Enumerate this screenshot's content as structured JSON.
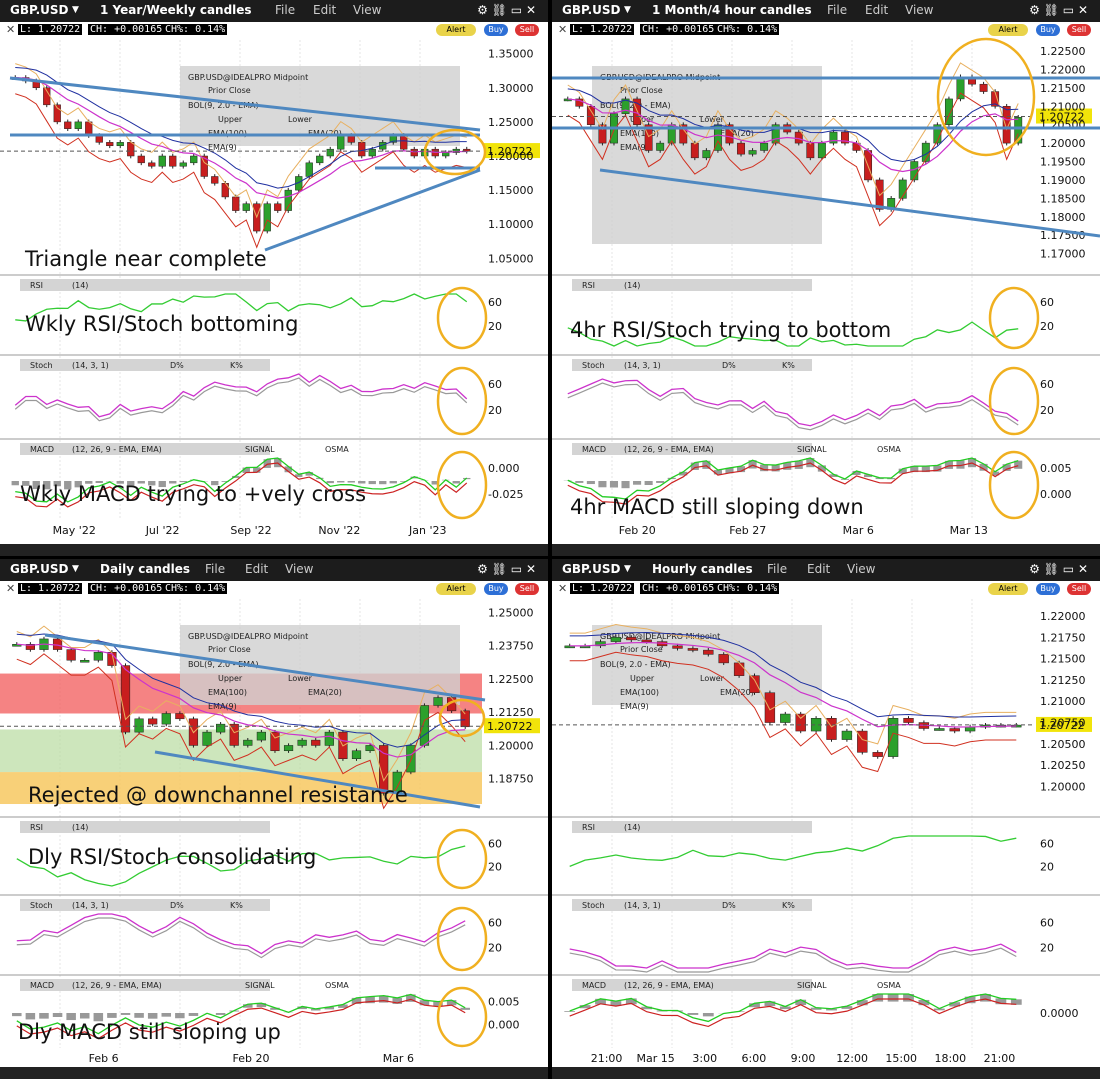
{
  "colors": {
    "accent_yellow": "#f1e40a",
    "trend_blue": "#4f88c0",
    "circle": "#f0b020",
    "bull": "#2ca02c",
    "bear": "#c81e1e",
    "rsi": "#33cc33",
    "stoch_k": "#cc33cc",
    "stoch_d": "#999999",
    "macd": "#22cc22",
    "signal": "#cc2222"
  },
  "common": {
    "symbol": "GBP.USD",
    "menu_file": "File",
    "menu_edit": "Edit",
    "menu_view": "View",
    "alert": "Alert",
    "buy": "Buy",
    "sell": "Sell",
    "quote_l": "L: 1.20722",
    "quote_ch": "CH: +0.00165",
    "quote_chp": "CH%: 0.14%",
    "last_price": "1.20722",
    "legend_title": "GBP.USD@IDEALPRO Midpoint",
    "legend_prior_close": "Prior Close",
    "legend_bol": "BOL(9, 2.0 - EMA)",
    "legend_upper": "Upper",
    "legend_lower": "Lower",
    "legend_ema100": "EMA(100)",
    "legend_ema20": "EMA(20)",
    "legend_ema50": "EMA(50)",
    "legend_ema9": "EMA(9)",
    "rsi_label": "RSI",
    "rsi_params": "(14)",
    "stoch_label": "Stoch",
    "stoch_params": "(14, 3, 1)",
    "stoch_d": "D%",
    "stoch_k": "K%",
    "macd_label": "MACD",
    "macd_params_w": "(12, 26, 9 - EMA, EMA)",
    "macd_params": "(12, 26, 9 - EMA, EMA)",
    "macd_signal": "SIGNAL",
    "macd_osma": "OSMA"
  },
  "chart_data": [
    {
      "type": "candlestick",
      "panel": "top-left",
      "timeframe": "1 Year/Weekly candles",
      "price_ticks": [
        "1.35000",
        "1.30000",
        "1.25000",
        "1.20000",
        "1.15000",
        "1.10000",
        "1.05000"
      ],
      "x_ticks": [
        "May '22",
        "Jul '22",
        "Sep '22",
        "Nov '22",
        "Jan '23"
      ],
      "rsi_ticks": [
        "60",
        "20"
      ],
      "stoch_ticks": [
        "60",
        "20"
      ],
      "macd_ticks": [
        "0.000",
        "-0.025"
      ],
      "annotations": [
        "Triangle near complete",
        "Wkly RSI/Stoch bottoming",
        "Wkly MACD trying to +vely cross"
      ],
      "close_series": [
        1.315,
        1.31,
        1.3,
        1.275,
        1.25,
        1.24,
        1.25,
        1.23,
        1.22,
        1.215,
        1.22,
        1.2,
        1.19,
        1.185,
        1.2,
        1.185,
        1.19,
        1.2,
        1.17,
        1.16,
        1.14,
        1.12,
        1.13,
        1.09,
        1.13,
        1.12,
        1.15,
        1.17,
        1.19,
        1.2,
        1.21,
        1.23,
        1.22,
        1.2,
        1.21,
        1.22,
        1.23,
        1.21,
        1.2,
        1.21,
        1.2,
        1.205,
        1.21,
        1.207
      ]
    },
    {
      "type": "candlestick",
      "panel": "top-right",
      "timeframe": "1 Month/4 hour candles",
      "price_ticks": [
        "1.22500",
        "1.22000",
        "1.21500",
        "1.21000",
        "1.20500",
        "1.20000",
        "1.19500",
        "1.19000",
        "1.18500",
        "1.18000",
        "1.17500",
        "1.17000"
      ],
      "x_ticks": [
        "Feb 20",
        "Feb 27",
        "Mar 6",
        "Mar 13"
      ],
      "rsi_ticks": [
        "60",
        "20"
      ],
      "stoch_ticks": [
        "60",
        "20"
      ],
      "macd_ticks": [
        "0.005",
        "0.000"
      ],
      "annotations": [
        "4hr RSI/Stoch trying to bottom",
        "4hr MACD still sloping down"
      ],
      "close_series": [
        1.212,
        1.21,
        1.205,
        1.2,
        1.208,
        1.212,
        1.205,
        1.198,
        1.2,
        1.205,
        1.2,
        1.196,
        1.198,
        1.205,
        1.2,
        1.197,
        1.198,
        1.2,
        1.205,
        1.203,
        1.2,
        1.196,
        1.2,
        1.203,
        1.2,
        1.198,
        1.19,
        1.182,
        1.185,
        1.19,
        1.195,
        1.2,
        1.205,
        1.212,
        1.218,
        1.216,
        1.214,
        1.21,
        1.2,
        1.207
      ]
    },
    {
      "type": "candlestick",
      "panel": "bottom-left",
      "timeframe": "Daily candles",
      "price_ticks": [
        "1.25000",
        "1.23750",
        "1.22500",
        "1.21250",
        "1.20000",
        "1.18750"
      ],
      "x_ticks": [
        "Feb 6",
        "Feb 20",
        "Mar 6"
      ],
      "rsi_ticks": [
        "60",
        "20"
      ],
      "stoch_ticks": [
        "60",
        "20"
      ],
      "macd_ticks": [
        "0.005",
        "0.000"
      ],
      "annotations": [
        "Rejected @ downchannel resistance",
        "Dly RSI/Stoch consolidating",
        "Dly MACD still sloping up"
      ],
      "close_series": [
        1.238,
        1.236,
        1.24,
        1.236,
        1.232,
        1.232,
        1.235,
        1.23,
        1.205,
        1.21,
        1.208,
        1.212,
        1.21,
        1.2,
        1.205,
        1.208,
        1.2,
        1.202,
        1.205,
        1.198,
        1.2,
        1.202,
        1.2,
        1.205,
        1.195,
        1.198,
        1.2,
        1.182,
        1.19,
        1.2,
        1.215,
        1.218,
        1.213,
        1.207
      ]
    },
    {
      "type": "candlestick",
      "panel": "bottom-right",
      "timeframe": "Hourly candles",
      "price_ticks": [
        "1.22000",
        "1.21750",
        "1.21500",
        "1.21250",
        "1.21000",
        "1.20750",
        "1.20500",
        "1.20250",
        "1.20000"
      ],
      "x_ticks": [
        "21:00",
        "Mar 15",
        "3:00",
        "6:00",
        "9:00",
        "12:00",
        "15:00",
        "18:00",
        "21:00"
      ],
      "rsi_ticks": [
        "60",
        "20"
      ],
      "stoch_ticks": [
        "60",
        "20"
      ],
      "macd_ticks": [
        "0.0000"
      ],
      "close_series": [
        1.2165,
        1.2165,
        1.217,
        1.2175,
        1.2172,
        1.217,
        1.2165,
        1.2162,
        1.216,
        1.2155,
        1.2145,
        1.213,
        1.211,
        1.2075,
        1.2085,
        1.2065,
        1.208,
        1.2055,
        1.2065,
        1.204,
        1.2035,
        1.208,
        1.2075,
        1.2068,
        1.2068,
        1.2065,
        1.207,
        1.2072,
        1.2072,
        1.2072
      ]
    }
  ]
}
